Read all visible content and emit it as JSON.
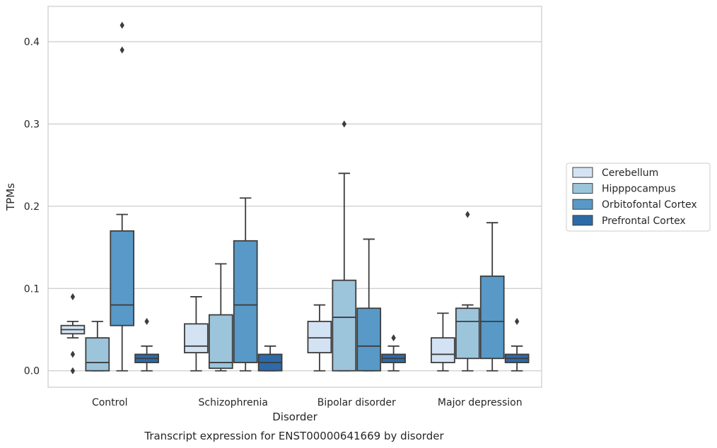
{
  "chart_data": {
    "type": "boxplot",
    "caption": "Transcript expression for ENST00000641669 by disorder",
    "xlabel": "Disorder",
    "ylabel": "TPMs",
    "ylim": [
      -0.02,
      0.443
    ],
    "yticks": [
      "0.0",
      "0.1",
      "0.2",
      "0.3",
      "0.4"
    ],
    "grid": "horizontal",
    "legend_position": "outside-right",
    "categories": [
      "Control",
      "Schizophrenia",
      "Bipolar disorder",
      "Major depression"
    ],
    "series": [
      {
        "name": "Cerebellum",
        "color": "#d4e3f3",
        "boxes": [
          {
            "whislo": 0.04,
            "q1": 0.045,
            "med": 0.05,
            "q3": 0.055,
            "whishi": 0.06,
            "fliers": [
              0.09,
              0.02,
              0.0
            ]
          },
          {
            "whislo": 0.0,
            "q1": 0.022,
            "med": 0.03,
            "q3": 0.057,
            "whishi": 0.09,
            "fliers": []
          },
          {
            "whislo": 0.0,
            "q1": 0.022,
            "med": 0.04,
            "q3": 0.06,
            "whishi": 0.08,
            "fliers": []
          },
          {
            "whislo": 0.0,
            "q1": 0.01,
            "med": 0.02,
            "q3": 0.04,
            "whishi": 0.07,
            "fliers": []
          }
        ]
      },
      {
        "name": "Hipppocampus",
        "color": "#9cc5dc",
        "boxes": [
          {
            "whislo": 0.0,
            "q1": 0.0,
            "med": 0.01,
            "q3": 0.04,
            "whishi": 0.06,
            "fliers": []
          },
          {
            "whislo": 0.0,
            "q1": 0.003,
            "med": 0.01,
            "q3": 0.068,
            "whishi": 0.13,
            "fliers": []
          },
          {
            "whislo": 0.0,
            "q1": 0.0,
            "med": 0.065,
            "q3": 0.11,
            "whishi": 0.24,
            "fliers": [
              0.3
            ]
          },
          {
            "whislo": 0.0,
            "q1": 0.015,
            "med": 0.06,
            "q3": 0.076,
            "whishi": 0.08,
            "fliers": [
              0.19
            ]
          }
        ]
      },
      {
        "name": "Orbitofontal Cortex",
        "color": "#5899c7",
        "boxes": [
          {
            "whislo": 0.0,
            "q1": 0.055,
            "med": 0.08,
            "q3": 0.17,
            "whishi": 0.19,
            "fliers": [
              0.42,
              0.39
            ]
          },
          {
            "whislo": 0.0,
            "q1": 0.01,
            "med": 0.08,
            "q3": 0.158,
            "whishi": 0.21,
            "fliers": []
          },
          {
            "whislo": 0.0,
            "q1": 0.0,
            "med": 0.03,
            "q3": 0.076,
            "whishi": 0.16,
            "fliers": []
          },
          {
            "whislo": 0.0,
            "q1": 0.015,
            "med": 0.06,
            "q3": 0.115,
            "whishi": 0.18,
            "fliers": []
          }
        ]
      },
      {
        "name": "Prefrontal Cortex",
        "color": "#2d6aa8",
        "boxes": [
          {
            "whislo": 0.0,
            "q1": 0.01,
            "med": 0.015,
            "q3": 0.02,
            "whishi": 0.03,
            "fliers": [
              0.06
            ]
          },
          {
            "whislo": 0.0,
            "q1": 0.0,
            "med": 0.01,
            "q3": 0.02,
            "whishi": 0.03,
            "fliers": []
          },
          {
            "whislo": 0.0,
            "q1": 0.01,
            "med": 0.015,
            "q3": 0.02,
            "whishi": 0.03,
            "fliers": [
              0.04
            ]
          },
          {
            "whislo": 0.0,
            "q1": 0.01,
            "med": 0.015,
            "q3": 0.02,
            "whishi": 0.03,
            "fliers": [
              0.06
            ]
          }
        ]
      }
    ]
  }
}
